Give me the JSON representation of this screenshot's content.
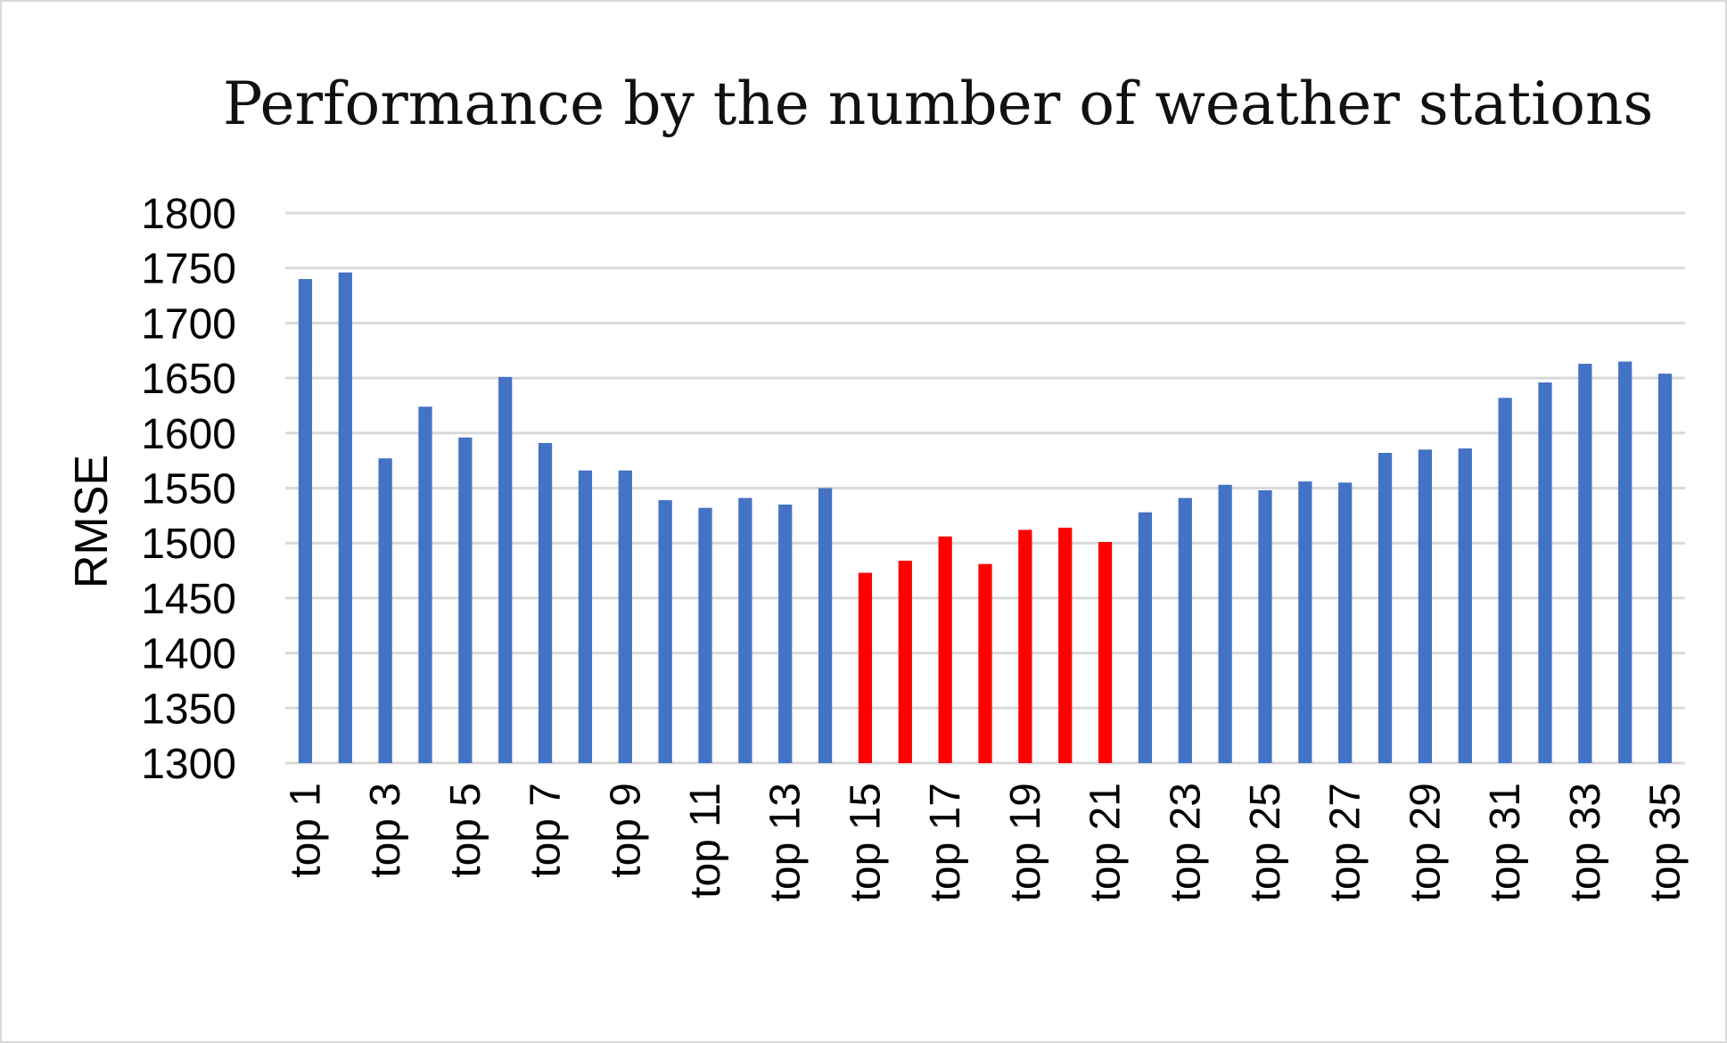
{
  "chart_data": {
    "type": "bar",
    "title": "Performance by the number of weather stations",
    "xlabel": "",
    "ylabel": "RMSE",
    "ylim": [
      1300,
      1800
    ],
    "yticks": [
      1300,
      1350,
      1400,
      1450,
      1500,
      1550,
      1600,
      1650,
      1700,
      1750,
      1800
    ],
    "grid": true,
    "categories": [
      "top 1",
      "top 2",
      "top 3",
      "top 4",
      "top 5",
      "top 6",
      "top 7",
      "top 8",
      "top 9",
      "top 10",
      "top 11",
      "top 12",
      "top 13",
      "top 14",
      "top 15",
      "top 16",
      "top 17",
      "top 18",
      "top 19",
      "top 20",
      "top 21",
      "top 22",
      "top 23",
      "top 24",
      "top 25",
      "top 26",
      "top 27",
      "top 28",
      "top 29",
      "top 30",
      "top 31",
      "top 32",
      "top 33",
      "top 34",
      "top 35"
    ],
    "visible_tick_labels": [
      "top 1",
      "top 3",
      "top 5",
      "top 7",
      "top 9",
      "top 11",
      "top 13",
      "top 15",
      "top 17",
      "top 19",
      "top 21",
      "top 23",
      "top 25",
      "top 27",
      "top 29",
      "top 31",
      "top 33",
      "top 35"
    ],
    "values": [
      1740,
      1746,
      1577,
      1624,
      1596,
      1651,
      1591,
      1566,
      1566,
      1539,
      1532,
      1541,
      1535,
      1550,
      1473,
      1484,
      1506,
      1481,
      1512,
      1514,
      1501,
      1528,
      1541,
      1553,
      1548,
      1556,
      1555,
      1582,
      1585,
      1586,
      1632,
      1646,
      1663,
      1665,
      1654
    ],
    "bar_colors": [
      "#4472c4",
      "#4472c4",
      "#4472c4",
      "#4472c4",
      "#4472c4",
      "#4472c4",
      "#4472c4",
      "#4472c4",
      "#4472c4",
      "#4472c4",
      "#4472c4",
      "#4472c4",
      "#4472c4",
      "#4472c4",
      "#ff0000",
      "#ff0000",
      "#ff0000",
      "#ff0000",
      "#ff0000",
      "#ff0000",
      "#ff0000",
      "#4472c4",
      "#4472c4",
      "#4472c4",
      "#4472c4",
      "#4472c4",
      "#4472c4",
      "#4472c4",
      "#4472c4",
      "#4472c4",
      "#4472c4",
      "#4472c4",
      "#4472c4",
      "#4472c4",
      "#4472c4"
    ],
    "colors": {
      "default_bar": "#4472c4",
      "highlight_bar": "#ff0000",
      "gridline": "#d9d9d9"
    }
  }
}
